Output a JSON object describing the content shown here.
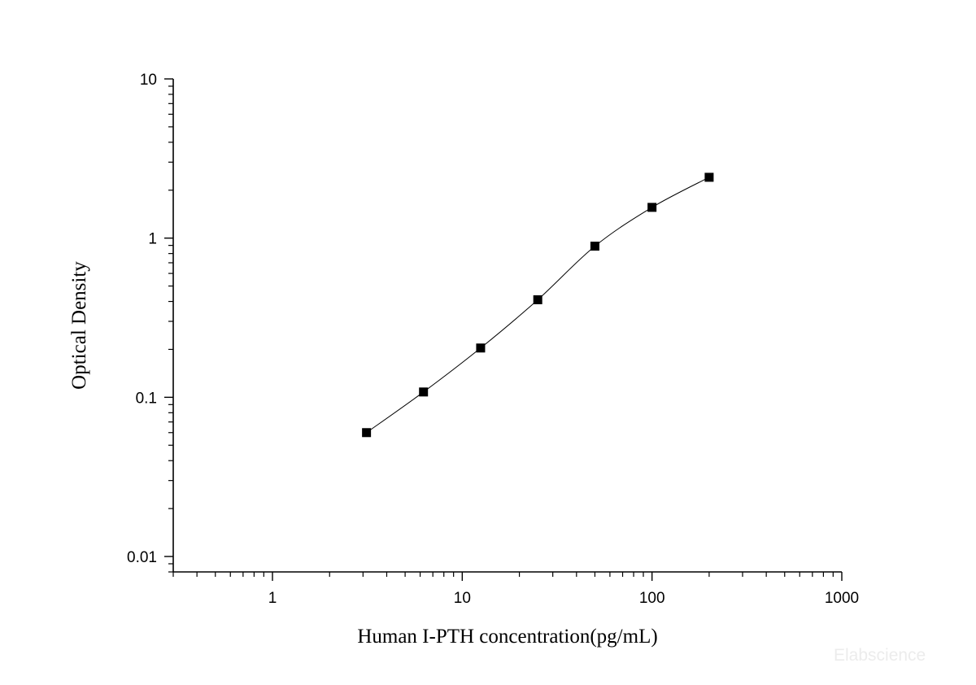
{
  "chart_data": {
    "type": "scatter",
    "title": "",
    "xlabel": "Human I-PTH concentration(pg/mL)",
    "ylabel": "Optical Density",
    "x_scale": "log",
    "y_scale": "log",
    "xlim": [
      0.3,
      1000
    ],
    "ylim": [
      0.008,
      10
    ],
    "grid": false,
    "x_ticks": [
      {
        "value": 1,
        "label": "1"
      },
      {
        "value": 10,
        "label": "10"
      },
      {
        "value": 100,
        "label": "100"
      },
      {
        "value": 1000,
        "label": "1000"
      }
    ],
    "y_ticks": [
      {
        "value": 0.01,
        "label": "0.01"
      },
      {
        "value": 0.1,
        "label": "0.1"
      },
      {
        "value": 1,
        "label": "1"
      },
      {
        "value": 10,
        "label": "10"
      }
    ],
    "series": [
      {
        "marker": "square",
        "fit_curve": true,
        "color": "#000000",
        "x": [
          3.13,
          6.25,
          12.5,
          25,
          50,
          100,
          200
        ],
        "y": [
          0.06,
          0.108,
          0.204,
          0.41,
          0.89,
          1.56,
          2.41
        ]
      }
    ]
  },
  "watermark": "Elabscience"
}
